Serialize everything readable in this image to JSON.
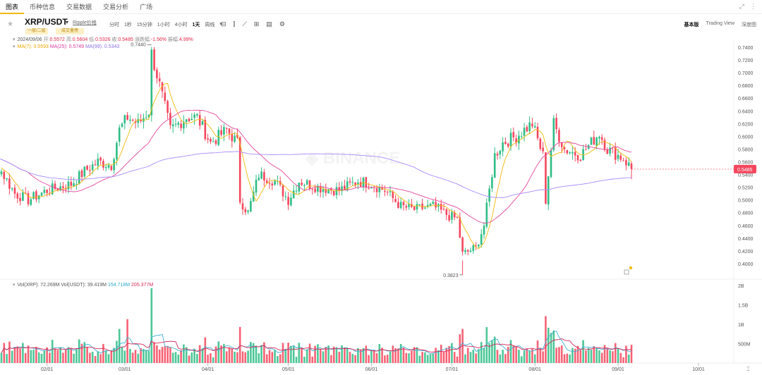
{
  "nav": {
    "tabs": [
      "图表",
      "币种信息",
      "交易数据",
      "交易分析",
      "广场"
    ],
    "active": 0
  },
  "header": {
    "pair": "XRP/USDT",
    "pair_name": "Ripple价格",
    "tags": [
      "一层/二层",
      "成交量榜"
    ],
    "intervals": [
      "分时",
      "1秒",
      "15分钟",
      "1小时",
      "4小时",
      "1天",
      "周线"
    ],
    "active_interval": "1天",
    "views": [
      "基本版",
      "Trading View",
      "深度图"
    ],
    "active_view": "基本版"
  },
  "ohlc": {
    "date": "2024/09/06",
    "open_label": "开:",
    "open": "0.5572",
    "high_label": "高:",
    "high": "0.5604",
    "low_label": "低:",
    "low": "0.5326",
    "close_label": "收:",
    "close": "0.5485",
    "change_label": "涨跌幅:",
    "change": "-1.56%",
    "amp_label": "振幅:",
    "amp": "4.99%"
  },
  "ma": {
    "ma7": "MA(7): 0.5593",
    "ma25": "MA(25): 0.5749",
    "ma99": "MA(99): 0.5343"
  },
  "vol": {
    "label": "Vol(XRP): 72.269M",
    "usdt": "Vol(USDT): 39.419M",
    "v5": "154.718M",
    "v10": "205.377M"
  },
  "colors": {
    "up": "#2ebd85",
    "down": "#f6465d",
    "ma7": "#f0b90b",
    "ma25": "#e4479c",
    "ma99": "#a78bfa",
    "vol_ma5": "#40b0d0",
    "vol_ma10": "#d6285a"
  },
  "chart_data": {
    "type": "candlestick",
    "price_axis": {
      "ticks": [
        "0.7400",
        "0.7200",
        "0.7000",
        "0.6800",
        "0.6600",
        "0.6400",
        "0.6200",
        "0.6000",
        "0.5800",
        "0.5600",
        "0.5400",
        "0.5200",
        "0.5000",
        "0.4800",
        "0.4600",
        "0.4400",
        "0.4200",
        "0.4000"
      ],
      "ylim": [
        0.38,
        0.75
      ]
    },
    "current_price": "0.5485",
    "annotations": {
      "high": "0.7440",
      "low": "0.3823"
    },
    "volume_axis": {
      "ticks": [
        "2B",
        "1.5B",
        "1B",
        "500M"
      ],
      "ylim": [
        0,
        2000
      ]
    },
    "x_ticks": [
      "02/01",
      "03/01",
      "04/01",
      "05/01",
      "06/01",
      "07/01",
      "08/01",
      "09/01",
      "10/01"
    ],
    "anchors": [
      [
        "01/01",
        0.6
      ],
      [
        "01/05",
        0.57
      ],
      [
        "01/10",
        0.555
      ],
      [
        "01/15",
        0.545
      ],
      [
        "01/20",
        0.51
      ],
      [
        "01/25",
        0.5
      ],
      [
        "02/01",
        0.515
      ],
      [
        "02/10",
        0.525
      ],
      [
        "02/15",
        0.545
      ],
      [
        "02/20",
        0.56
      ],
      [
        "02/25",
        0.555
      ],
      [
        "02/28",
        0.61
      ],
      [
        "03/02",
        0.63
      ],
      [
        "03/06",
        0.62
      ],
      [
        "03/10",
        0.64
      ],
      [
        "03/11",
        0.73
      ],
      [
        "03/14",
        0.68
      ],
      [
        "03/18",
        0.61
      ],
      [
        "03/24",
        0.63
      ],
      [
        "03/28",
        0.63
      ],
      [
        "04/02",
        0.59
      ],
      [
        "04/08",
        0.61
      ],
      [
        "04/12",
        0.59
      ],
      [
        "04/13",
        0.5
      ],
      [
        "04/16",
        0.48
      ],
      [
        "04/20",
        0.54
      ],
      [
        "04/26",
        0.53
      ],
      [
        "05/01",
        0.5
      ],
      [
        "05/05",
        0.53
      ],
      [
        "05/12",
        0.52
      ],
      [
        "05/20",
        0.515
      ],
      [
        "05/27",
        0.53
      ],
      [
        "06/01",
        0.525
      ],
      [
        "06/06",
        0.515
      ],
      [
        "06/12",
        0.49
      ],
      [
        "06/17",
        0.485
      ],
      [
        "06/24",
        0.49
      ],
      [
        "06/30",
        0.475
      ],
      [
        "07/03",
        0.47
      ],
      [
        "07/05",
        0.415
      ],
      [
        "07/10",
        0.425
      ],
      [
        "07/13",
        0.46
      ],
      [
        "07/17",
        0.57
      ],
      [
        "07/20",
        0.59
      ],
      [
        "07/25",
        0.6
      ],
      [
        "07/31",
        0.62
      ],
      [
        "08/04",
        0.57
      ],
      [
        "08/05",
        0.5
      ],
      [
        "08/08",
        0.62
      ],
      [
        "08/12",
        0.58
      ],
      [
        "08/18",
        0.57
      ],
      [
        "08/22",
        0.59
      ],
      [
        "08/25",
        0.605
      ],
      [
        "08/28",
        0.58
      ],
      [
        "09/03",
        0.565
      ],
      [
        "09/06",
        0.549
      ]
    ],
    "volume_peaks": [
      [
        "03/11",
        1930
      ],
      [
        "03/02",
        1130
      ],
      [
        "02/28",
        880
      ],
      [
        "04/13",
        930
      ],
      [
        "07/05",
        880
      ],
      [
        "08/05",
        1210
      ],
      [
        "08/08",
        840
      ],
      [
        "07/17",
        680
      ]
    ]
  }
}
